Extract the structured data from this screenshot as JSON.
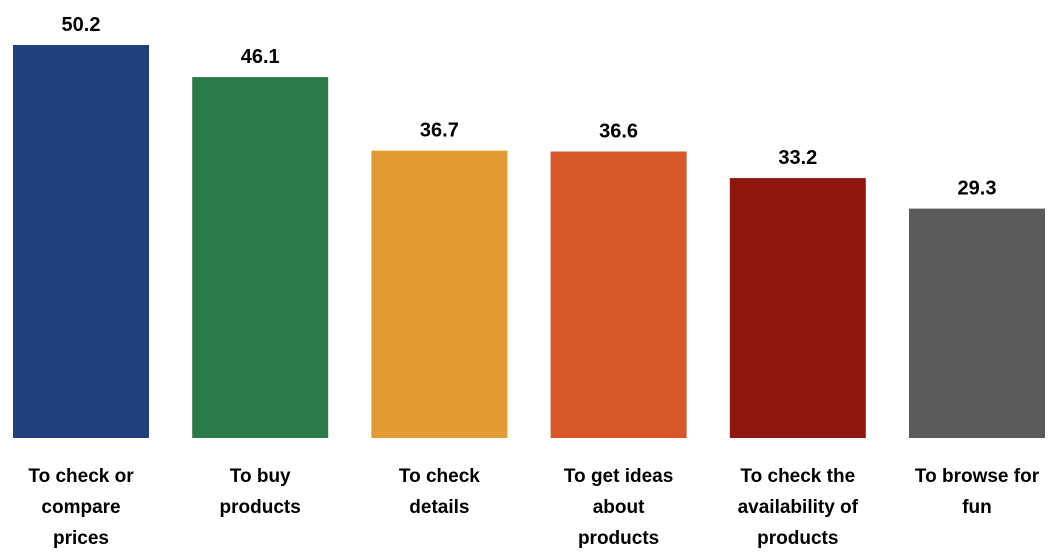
{
  "chart_data": {
    "type": "bar",
    "categories": [
      [
        "To check or",
        "compare",
        "prices"
      ],
      [
        "To buy",
        "products"
      ],
      [
        "To check",
        "details"
      ],
      [
        "To get ideas",
        "about",
        "products"
      ],
      [
        "To check the",
        "availability of",
        "products"
      ],
      [
        "To browse for",
        "fun"
      ]
    ],
    "values": [
      50.2,
      46.1,
      36.7,
      36.6,
      33.2,
      29.3
    ],
    "value_labels": [
      "50.2",
      "46.1",
      "36.7",
      "36.6",
      "33.2",
      "29.3"
    ],
    "colors": [
      "#203f7c",
      "#2c7a47",
      "#e29b32",
      "#d85727",
      "#8e160e",
      "#5a5a5a"
    ],
    "ylim": [
      0,
      50.2
    ],
    "grid": false,
    "legend": "none",
    "title": "",
    "xlabel": "",
    "ylabel": ""
  }
}
